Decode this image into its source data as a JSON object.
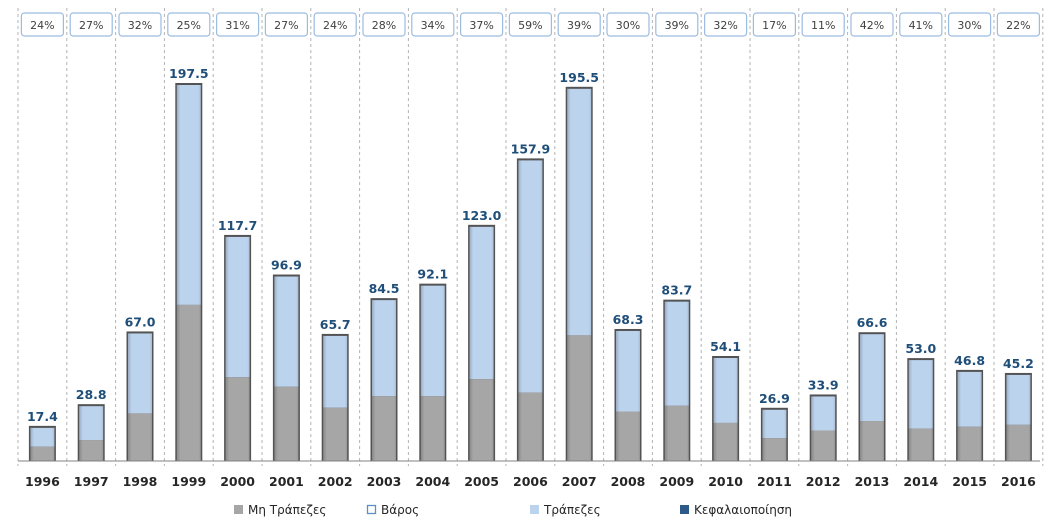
{
  "chart_data": {
    "type": "bar",
    "categories": [
      "1996",
      "1997",
      "1998",
      "1999",
      "2000",
      "2001",
      "2002",
      "2003",
      "2004",
      "2005",
      "2006",
      "2007",
      "2008",
      "2009",
      "2010",
      "2011",
      "2012",
      "2013",
      "2014",
      "2015",
      "2016"
    ],
    "series": [
      {
        "name": "Μη Τράπεζες",
        "values": [
          7.5,
          11.0,
          25.0,
          82.0,
          44.0,
          39.0,
          28.0,
          34.0,
          34.0,
          43.0,
          36.0,
          66.0,
          26.0,
          29.0,
          20.0,
          12.0,
          16.0,
          21.0,
          17.0,
          18.0,
          19.0
        ]
      },
      {
        "name": "Τράπεζες",
        "values": [
          9.9,
          17.8,
          42.0,
          115.5,
          73.7,
          57.9,
          37.7,
          50.5,
          58.1,
          80.0,
          121.9,
          129.5,
          42.3,
          54.7,
          34.1,
          14.9,
          17.9,
          45.6,
          36.0,
          28.8,
          26.2
        ]
      }
    ],
    "totals": [
      "17.4",
      "28.8",
      "67.0",
      "197.5",
      "117.7",
      "96.9",
      "65.7",
      "84.5",
      "92.1",
      "123.0",
      "157.9",
      "195.5",
      "68.3",
      "83.7",
      "54.1",
      "26.9",
      "33.9",
      "66.6",
      "53.0",
      "46.8",
      "45.2"
    ],
    "total_values": [
      17.4,
      28.8,
      67.0,
      197.5,
      117.7,
      96.9,
      65.7,
      84.5,
      92.1,
      123.0,
      157.9,
      195.5,
      68.3,
      83.7,
      54.1,
      26.9,
      33.9,
      66.6,
      53.0,
      46.8,
      45.2
    ],
    "weights": [
      "24%",
      "27%",
      "32%",
      "25%",
      "31%",
      "27%",
      "24%",
      "28%",
      "34%",
      "37%",
      "59%",
      "39%",
      "30%",
      "39%",
      "32%",
      "17%",
      "11%",
      "42%",
      "41%",
      "30%",
      "22%"
    ],
    "legend": [
      {
        "label": "Μη Τράπεζες",
        "color": "#a6a6a6",
        "style": "filled"
      },
      {
        "label": "Βάρος",
        "color": "#5b8fc7",
        "style": "outline"
      },
      {
        "label": "Τράπεζες",
        "color": "#bcd3ee",
        "style": "filled"
      },
      {
        "label": "Κεφαλαιοποίηση",
        "color": "#2e5a8a",
        "style": "filled"
      }
    ],
    "ylim": [
      0,
      200
    ],
    "grid": "vertical-dashed",
    "legend_position": "bottom",
    "colors": {
      "non_banks": "#a6a6a6",
      "banks": "#bcd3ee",
      "total_label": "#1f4e79",
      "weight_box": "#9bbbe0"
    }
  }
}
